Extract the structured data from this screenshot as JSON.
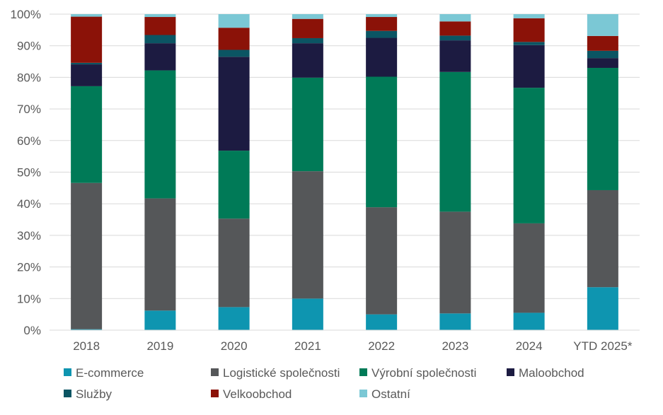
{
  "chart_data": {
    "type": "bar",
    "stacked": true,
    "percent_stacked": true,
    "categories": [
      "2018",
      "2019",
      "2020",
      "2021",
      "2022",
      "2023",
      "2024",
      "YTD 2025*"
    ],
    "series": [
      {
        "name": "E-commerce",
        "color": "#0E95B0",
        "values": [
          0.3,
          6.2,
          7.3,
          10.0,
          5.0,
          5.3,
          5.5,
          13.6
        ]
      },
      {
        "name": "Logistické společnosti",
        "color": "#555759",
        "values": [
          46.3,
          35.5,
          28.0,
          40.3,
          33.9,
          32.2,
          28.3,
          30.7
        ]
      },
      {
        "name": "Výrobní společnosti",
        "color": "#007A57",
        "values": [
          30.6,
          40.5,
          21.5,
          29.6,
          41.3,
          44.2,
          42.9,
          38.7
        ]
      },
      {
        "name": "Maloobchod",
        "color": "#1C1B41",
        "values": [
          6.9,
          8.6,
          29.7,
          10.9,
          12.3,
          10.0,
          13.5,
          3.1
        ]
      },
      {
        "name": "Služby",
        "color": "#0B5563",
        "values": [
          0.5,
          2.6,
          2.2,
          1.6,
          2.2,
          1.5,
          1.0,
          2.3
        ]
      },
      {
        "name": "Velkoobchod",
        "color": "#8B1208",
        "values": [
          14.6,
          5.7,
          7.0,
          6.1,
          4.4,
          4.5,
          7.5,
          4.7
        ]
      },
      {
        "name": "Ostatní",
        "color": "#7BC8D5",
        "values": [
          0.8,
          0.9,
          4.3,
          1.5,
          0.9,
          2.3,
          1.3,
          6.9
        ]
      }
    ],
    "ylim": [
      0,
      100
    ],
    "y_ticks": [
      "0%",
      "10%",
      "20%",
      "30%",
      "40%",
      "50%",
      "60%",
      "70%",
      "80%",
      "90%",
      "100%"
    ],
    "grid": true,
    "gridline_color": "#D9D9D9",
    "legend_placement": "bottom",
    "title": "",
    "xlabel": "",
    "ylabel": ""
  }
}
